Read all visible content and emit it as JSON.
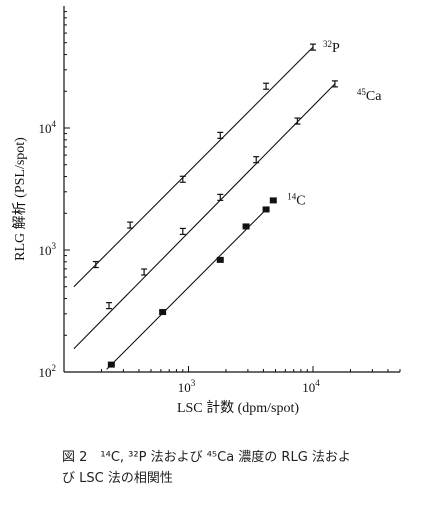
{
  "chart_data": {
    "type": "scatter",
    "xscale": "log",
    "yscale": "log",
    "xlim": [
      100,
      50000
    ],
    "ylim": [
      100,
      100000
    ],
    "xlabel": "LSC 計数 (dpm/spot)",
    "ylabel": "RLG 解析 (PSL/spot)",
    "x_ticks": [
      {
        "value": 1000,
        "base": "10",
        "exp": "3"
      },
      {
        "value": 10000,
        "base": "10",
        "exp": "4"
      }
    ],
    "y_ticks": [
      {
        "value": 100,
        "base": "10",
        "exp": "2"
      },
      {
        "value": 1000,
        "base": "10",
        "exp": "3"
      },
      {
        "value": 10000,
        "base": "10",
        "exp": "4"
      }
    ],
    "series": [
      {
        "name_mass": "32",
        "name_element": "P",
        "marker": "errorbar",
        "x": [
          180,
          340,
          900,
          1800,
          4200,
          10000
        ],
        "y": [
          760,
          1600,
          3800,
          8700,
          22000,
          46000
        ],
        "fit": {
          "x": [
            120,
            10000
          ],
          "y": [
            500,
            46000
          ]
        }
      },
      {
        "name_mass": "45",
        "name_element": "Ca",
        "marker": "errorbar",
        "x": [
          230,
          440,
          900,
          1800,
          3500,
          7500,
          15000
        ],
        "y": [
          350,
          660,
          1420,
          2700,
          5500,
          11400,
          23000
        ],
        "fit": {
          "x": [
            120,
            15000
          ],
          "y": [
            155,
            23000
          ]
        }
      },
      {
        "name_mass": "14",
        "name_element": "C",
        "marker": "square",
        "x": [
          240,
          620,
          1800,
          2900,
          4200,
          4800
        ],
        "y": [
          115,
          310,
          830,
          1560,
          2150,
          2550
        ],
        "fit": {
          "x": [
            220,
            4300
          ],
          "y": [
            105,
            2200
          ]
        }
      }
    ]
  },
  "caption": {
    "line1": "図 2　¹⁴C, ³²P 法および ⁴⁵Ca 濃度の RLG 法およ",
    "line2": "び LSC 法の相関性"
  }
}
